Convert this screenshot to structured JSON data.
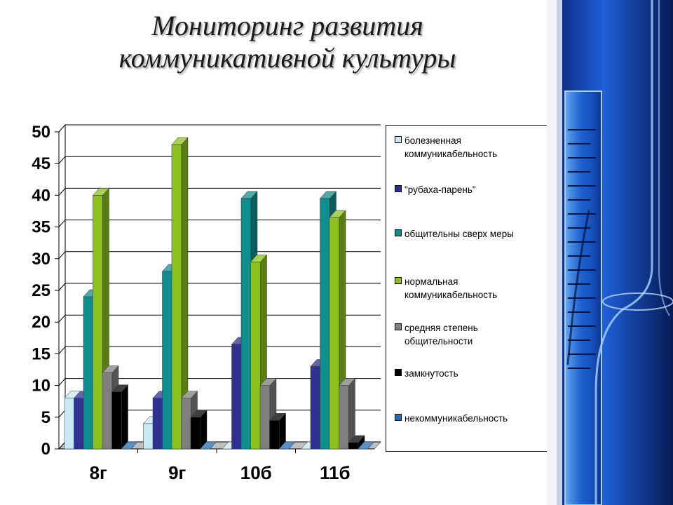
{
  "title_lines": [
    "Мониторинг развития",
    "коммуникативной культуры"
  ],
  "chart_data": {
    "type": "bar",
    "categories": [
      "8г",
      "9г",
      "10б",
      "11б"
    ],
    "ylim": [
      0,
      50
    ],
    "yticks": [
      0,
      5,
      10,
      15,
      20,
      25,
      30,
      35,
      40,
      45,
      50
    ],
    "grid": true,
    "legend_position": "right",
    "series": [
      {
        "name": "болезненная коммуникабельность",
        "color": "#c8eaf2",
        "values": [
          8,
          4,
          0,
          0
        ]
      },
      {
        "name": "\"рубаха-парень\"",
        "color": "#2e3192",
        "values": [
          8,
          8,
          16.5,
          13
        ]
      },
      {
        "name": "общительны сверх меры",
        "color": "#0e8f8f",
        "values": [
          24,
          28,
          39.5,
          39.5
        ]
      },
      {
        "name": "нормальная коммуникабельность",
        "color": "#8cc21b",
        "values": [
          40,
          48,
          29.5,
          36.5
        ]
      },
      {
        "name": "средняя степень общительности",
        "color": "#7f7f7f",
        "values": [
          12,
          8,
          10,
          10
        ]
      },
      {
        "name": "замкнутость",
        "color": "#000000",
        "values": [
          9,
          5,
          4.5,
          1
        ]
      },
      {
        "name": "некоммуникабельность",
        "color": "#1f6fb5",
        "values": [
          0,
          0,
          0,
          0
        ]
      }
    ]
  }
}
